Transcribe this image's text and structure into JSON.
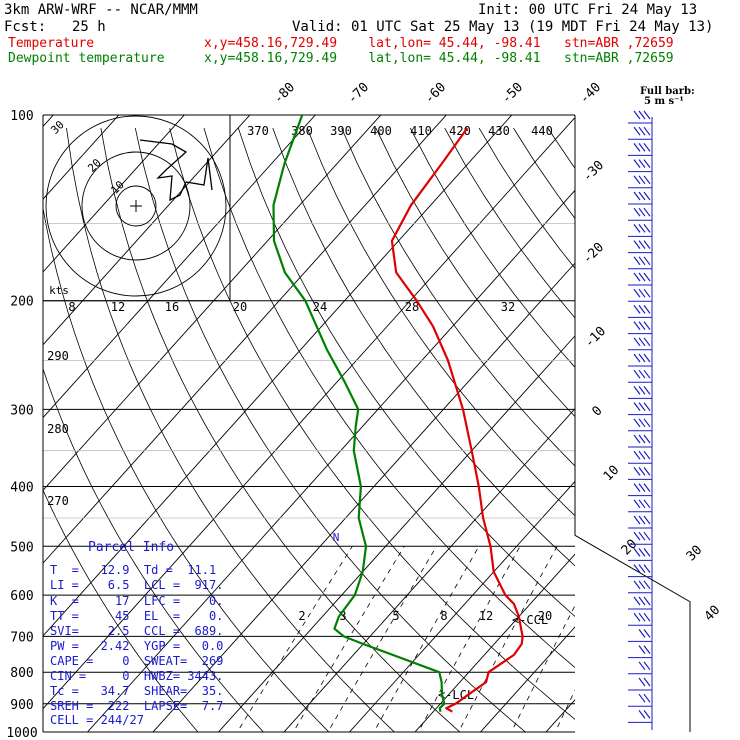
{
  "header": {
    "model": "3km ARW-WRF -- NCAR/MMM",
    "init": "Init: 00 UTC Fri 24 May 13",
    "fcst_label": "Fcst:",
    "fcst_value": "25 h",
    "valid": "Valid: 01 UTC Sat 25 May 13 (19 MDT Fri 24 May 13)",
    "temp_label": "Temperature",
    "temp_loc": "x,y=458.16,729.49    lat,lon= 45.44, -98.41   stn=ABR ,72659",
    "dew_label": "Dewpoint temperature",
    "dew_loc": "x,y=458.16,729.49    lat,lon= 45.44, -98.41   stn=ABR ,72659"
  },
  "barb_legend": [
    "Full barb:",
    "5 m s⁻¹"
  ],
  "parcel_info": {
    "title": "Parcel Info",
    "rows": [
      "T  =   12.9  Td =  11.1",
      "LI =    6.5  LCL =  917.",
      "K  =     17  LFC =    0.",
      "TT =     45  EL  =    0.",
      "SVI=    2.5  CCL =  689.",
      "PW =   2.42  YGP =   0.0",
      "CAPE =    0  SWEAT=  269",
      "CIN =     0  HWBZ= 3443.",
      "Tc =   34.7  SHEAR=  35.",
      "SREH =  222  LAPSE=  7.7",
      "CELL = 244/27"
    ]
  },
  "chart_data": {
    "type": "line",
    "title": "",
    "pressure_levels": [
      100,
      200,
      300,
      400,
      500,
      600,
      700,
      800,
      900,
      1000
    ],
    "pressure_labels": [
      "100",
      "200",
      "300",
      "400",
      "500",
      "600",
      "700",
      "800",
      "900",
      "1000"
    ],
    "isotherm_labels": [
      "-80",
      "-70",
      "-60",
      "-50",
      "-40",
      "-30",
      "-20",
      "-10",
      "0",
      "10",
      "20",
      "30",
      "40"
    ],
    "theta_labels": [
      "370",
      "380",
      "390",
      "400",
      "410",
      "420",
      "430",
      "440"
    ],
    "theta_side_labels": [
      "290",
      "280",
      "270"
    ],
    "mixing_ratio_labels": [
      "2",
      "3",
      "5",
      "8",
      "12",
      "20"
    ],
    "speed_scale_labels": [
      "8",
      "12",
      "16",
      "20",
      "24",
      "28",
      "32"
    ],
    "kts_label": "kts",
    "hodo_ring_labels": [
      "10",
      "20",
      "30"
    ],
    "annotations": [
      "<-LCL",
      "<-CCL",
      "N"
    ],
    "series": [
      {
        "name": "Temperature",
        "color": "#e00000",
        "points": [
          [
            927,
            12.9
          ],
          [
            915,
            11.5
          ],
          [
            900,
            12.3
          ],
          [
            870,
            13
          ],
          [
            830,
            14
          ],
          [
            800,
            13
          ],
          [
            750,
            14.5
          ],
          [
            720,
            14.2
          ],
          [
            700,
            13.3
          ],
          [
            680,
            12
          ],
          [
            650,
            10
          ],
          [
            620,
            7.5
          ],
          [
            600,
            5
          ],
          [
            550,
            0
          ],
          [
            500,
            -4
          ],
          [
            450,
            -9
          ],
          [
            400,
            -14
          ],
          [
            350,
            -20
          ],
          [
            300,
            -27
          ],
          [
            250,
            -36
          ],
          [
            220,
            -43
          ],
          [
            200,
            -49
          ],
          [
            180,
            -56
          ],
          [
            160,
            -61
          ],
          [
            140,
            -63
          ],
          [
            120,
            -64
          ],
          [
            105,
            -65
          ]
        ]
      },
      {
        "name": "Dewpoint temperature",
        "color": "#008000",
        "points": [
          [
            927,
            11.1
          ],
          [
            915,
            10.5
          ],
          [
            900,
            10.6
          ],
          [
            870,
            9
          ],
          [
            830,
            7.2
          ],
          [
            800,
            5.5
          ],
          [
            750,
            -4
          ],
          [
            720,
            -10
          ],
          [
            700,
            -14
          ],
          [
            680,
            -16.5
          ],
          [
            650,
            -17.5
          ],
          [
            600,
            -18
          ],
          [
            550,
            -20
          ],
          [
            500,
            -23
          ],
          [
            450,
            -28
          ],
          [
            400,
            -32
          ],
          [
            350,
            -38
          ],
          [
            320,
            -41
          ],
          [
            300,
            -43
          ],
          [
            270,
            -49
          ],
          [
            240,
            -56
          ],
          [
            200,
            -66
          ],
          [
            180,
            -73
          ],
          [
            160,
            -79
          ],
          [
            140,
            -84
          ],
          [
            120,
            -88
          ],
          [
            100,
            -92
          ]
        ]
      }
    ]
  }
}
